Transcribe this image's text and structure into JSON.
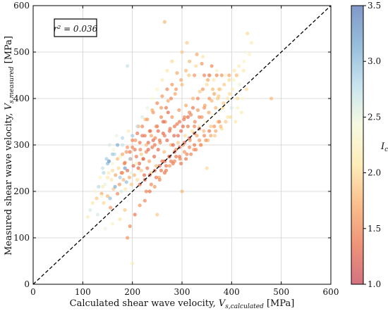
{
  "chart_data": {
    "type": "scatter",
    "xlabel_main": "Calculated shear wave velocity, ",
    "xlabel_sym": "V",
    "xlabel_sub": "s,calculated",
    "xlabel_unit": " [MPa]",
    "ylabel_main": "Measured shear wave velocity, ",
    "ylabel_sym": "V",
    "ylabel_sub": "s,measured",
    "ylabel_unit": " [MPa]",
    "xlim": [
      0,
      600
    ],
    "ylim": [
      0,
      600
    ],
    "xticks": [
      "0",
      "100",
      "200",
      "300",
      "400",
      "500",
      "600"
    ],
    "yticks": [
      "0",
      "100",
      "200",
      "300",
      "400",
      "500",
      "600"
    ],
    "grid": true,
    "annotation": "r² = 0.036",
    "reference_line": "1:1 (y = x), dashed black",
    "colorbar": {
      "label": "Ic",
      "range": [
        1.0,
        3.5
      ],
      "ticks": [
        "1.0",
        "1.5",
        "2.0",
        "2.5",
        "3.0",
        "3.5"
      ],
      "colormap": "RdYlBu",
      "colors": [
        "#c2364a",
        "#e8663f",
        "#f7a35c",
        "#fde49b",
        "#f3f8d5",
        "#b0d8e9",
        "#6aa2cc",
        "#4a6db3"
      ]
    },
    "points": [
      [
        110,
        145,
        2.2
      ],
      [
        115,
        160,
        2.6
      ],
      [
        120,
        175,
        2.1
      ],
      [
        125,
        200,
        2.4
      ],
      [
        128,
        185,
        1.9
      ],
      [
        132,
        210,
        2.8
      ],
      [
        135,
        230,
        2.3
      ],
      [
        138,
        195,
        1.7
      ],
      [
        140,
        250,
        2.7
      ],
      [
        142,
        175,
        2.0
      ],
      [
        145,
        215,
        2.5
      ],
      [
        148,
        270,
        2.9
      ],
      [
        150,
        190,
        1.8
      ],
      [
        152,
        240,
        2.2
      ],
      [
        154,
        300,
        2.6
      ],
      [
        156,
        165,
        1.6
      ],
      [
        158,
        225,
        2.1
      ],
      [
        160,
        260,
        2.4
      ],
      [
        162,
        205,
        1.9
      ],
      [
        164,
        280,
        2.8
      ],
      [
        166,
        235,
        1.7
      ],
      [
        168,
        320,
        2.5
      ],
      [
        170,
        195,
        1.5
      ],
      [
        172,
        250,
        2.0
      ],
      [
        174,
        215,
        1.6
      ],
      [
        176,
        275,
        2.3
      ],
      [
        178,
        240,
        1.4
      ],
      [
        180,
        300,
        2.7
      ],
      [
        182,
        225,
        1.8
      ],
      [
        184,
        260,
        1.5
      ],
      [
        186,
        205,
        2.1
      ],
      [
        188,
        285,
        1.6
      ],
      [
        190,
        245,
        1.3
      ],
      [
        192,
        330,
        2.2
      ],
      [
        194,
        230,
        1.7
      ],
      [
        196,
        270,
        1.4
      ],
      [
        198,
        215,
        1.9
      ],
      [
        200,
        295,
        1.5
      ],
      [
        202,
        255,
        1.3
      ],
      [
        204,
        235,
        1.8
      ],
      [
        206,
        310,
        1.6
      ],
      [
        208,
        275,
        1.4
      ],
      [
        210,
        225,
        2.0
      ],
      [
        212,
        340,
        1.7
      ],
      [
        214,
        260,
        1.3
      ],
      [
        216,
        290,
        1.5
      ],
      [
        218,
        245,
        1.9
      ],
      [
        220,
        320,
        1.4
      ],
      [
        222,
        270,
        1.6
      ],
      [
        224,
        235,
        1.3
      ],
      [
        226,
        355,
        1.8
      ],
      [
        228,
        285,
        1.5
      ],
      [
        230,
        250,
        1.4
      ],
      [
        232,
        305,
        1.3
      ],
      [
        234,
        265,
        1.7
      ],
      [
        236,
        330,
        1.5
      ],
      [
        238,
        240,
        1.9
      ],
      [
        240,
        295,
        1.4
      ],
      [
        242,
        370,
        1.6
      ],
      [
        244,
        275,
        1.3
      ],
      [
        246,
        315,
        1.5
      ],
      [
        248,
        255,
        1.8
      ],
      [
        250,
        340,
        1.4
      ],
      [
        252,
        290,
        1.3
      ],
      [
        254,
        230,
        1.7
      ],
      [
        256,
        305,
        1.5
      ],
      [
        258,
        380,
        1.6
      ],
      [
        260,
        265,
        1.4
      ],
      [
        262,
        325,
        1.3
      ],
      [
        264,
        285,
        1.8
      ],
      [
        266,
        350,
        1.5
      ],
      [
        268,
        245,
        1.4
      ],
      [
        270,
        310,
        1.3
      ],
      [
        272,
        395,
        1.7
      ],
      [
        274,
        275,
        1.5
      ],
      [
        276,
        335,
        1.4
      ],
      [
        278,
        300,
        1.8
      ],
      [
        280,
        360,
        1.6
      ],
      [
        282,
        260,
        1.4
      ],
      [
        284,
        320,
        1.3
      ],
      [
        286,
        410,
        1.7
      ],
      [
        288,
        290,
        1.5
      ],
      [
        290,
        345,
        1.4
      ],
      [
        292,
        305,
        1.9
      ],
      [
        294,
        375,
        1.6
      ],
      [
        296,
        270,
        1.5
      ],
      [
        298,
        330,
        1.3
      ],
      [
        300,
        430,
        1.8
      ],
      [
        302,
        300,
        1.6
      ],
      [
        304,
        355,
        1.4
      ],
      [
        306,
        320,
        2.0
      ],
      [
        308,
        385,
        1.7
      ],
      [
        310,
        280,
        1.5
      ],
      [
        312,
        340,
        1.4
      ],
      [
        314,
        450,
        1.9
      ],
      [
        316,
        310,
        1.6
      ],
      [
        318,
        365,
        1.5
      ],
      [
        320,
        330,
        2.1
      ],
      [
        322,
        400,
        1.8
      ],
      [
        324,
        290,
        1.6
      ],
      [
        326,
        350,
        1.5
      ],
      [
        328,
        470,
        2.0
      ],
      [
        330,
        320,
        1.7
      ],
      [
        332,
        375,
        1.6
      ],
      [
        334,
        340,
        2.2
      ],
      [
        336,
        415,
        1.9
      ],
      [
        338,
        300,
        1.7
      ],
      [
        340,
        360,
        1.6
      ],
      [
        342,
        490,
        2.1
      ],
      [
        344,
        330,
        1.8
      ],
      [
        346,
        385,
        1.7
      ],
      [
        348,
        350,
        2.3
      ],
      [
        350,
        430,
        2.0
      ],
      [
        352,
        310,
        1.8
      ],
      [
        354,
        370,
        1.7
      ],
      [
        356,
        450,
        2.2
      ],
      [
        358,
        340,
        1.9
      ],
      [
        360,
        395,
        1.8
      ],
      [
        362,
        365,
        2.4
      ],
      [
        364,
        440,
        2.1
      ],
      [
        366,
        320,
        1.9
      ],
      [
        368,
        380,
        1.8
      ],
      [
        370,
        460,
        2.3
      ],
      [
        372,
        350,
        2.0
      ],
      [
        374,
        405,
        1.9
      ],
      [
        376,
        375,
        2.5
      ],
      [
        378,
        420,
        2.2
      ],
      [
        380,
        335,
        2.0
      ],
      [
        384,
        390,
        1.9
      ],
      [
        388,
        450,
        2.4
      ],
      [
        392,
        360,
        2.1
      ],
      [
        396,
        410,
        2.0
      ],
      [
        400,
        380,
        2.6
      ],
      [
        404,
        440,
        2.3
      ],
      [
        408,
        350,
        2.1
      ],
      [
        412,
        400,
        2.0
      ],
      [
        416,
        430,
        2.5
      ],
      [
        420,
        370,
        2.2
      ],
      [
        424,
        460,
        2.1
      ],
      [
        428,
        500,
        2.4
      ],
      [
        432,
        540,
        2.0
      ],
      [
        436,
        495,
        2.3
      ],
      [
        440,
        520,
        2.2
      ],
      [
        480,
        400,
        1.8
      ],
      [
        190,
        100,
        1.6
      ],
      [
        195,
        125,
        1.5
      ],
      [
        205,
        150,
        1.4
      ],
      [
        215,
        170,
        1.6
      ],
      [
        225,
        180,
        1.5
      ],
      [
        235,
        200,
        1.4
      ],
      [
        245,
        210,
        1.6
      ],
      [
        255,
        225,
        1.5
      ],
      [
        265,
        240,
        1.4
      ],
      [
        275,
        255,
        1.6
      ],
      [
        285,
        265,
        1.5
      ],
      [
        295,
        275,
        1.4
      ],
      [
        305,
        285,
        1.6
      ],
      [
        315,
        295,
        1.5
      ],
      [
        325,
        300,
        1.4
      ],
      [
        335,
        310,
        1.6
      ],
      [
        345,
        320,
        1.5
      ],
      [
        355,
        330,
        1.4
      ],
      [
        365,
        340,
        1.6
      ],
      [
        375,
        350,
        1.5
      ],
      [
        200,
        45,
        2.2
      ],
      [
        250,
        150,
        1.9
      ],
      [
        300,
        200,
        1.8
      ],
      [
        350,
        250,
        2.0
      ],
      [
        160,
        130,
        2.3
      ],
      [
        175,
        140,
        2.1
      ],
      [
        185,
        160,
        1.9
      ],
      [
        145,
        120,
        2.5
      ],
      [
        130,
        150,
        2.6
      ],
      [
        155,
        185,
        3.0
      ],
      [
        165,
        210,
        3.1
      ],
      [
        175,
        230,
        2.9
      ],
      [
        185,
        250,
        3.2
      ],
      [
        195,
        270,
        2.8
      ],
      [
        150,
        260,
        3.0
      ],
      [
        160,
        280,
        2.9
      ],
      [
        170,
        300,
        3.1
      ],
      [
        180,
        315,
        2.8
      ],
      [
        200,
        320,
        2.9
      ],
      [
        210,
        340,
        2.7
      ],
      [
        220,
        360,
        2.6
      ],
      [
        230,
        380,
        2.5
      ],
      [
        240,
        400,
        2.4
      ],
      [
        250,
        420,
        2.3
      ],
      [
        260,
        440,
        2.2
      ],
      [
        270,
        460,
        2.1
      ],
      [
        280,
        480,
        2.0
      ],
      [
        190,
        470,
        2.7
      ],
      [
        265,
        565,
        1.8
      ],
      [
        310,
        520,
        1.9
      ],
      [
        330,
        495,
        1.7
      ],
      [
        340,
        475,
        1.6
      ],
      [
        360,
        470,
        1.5
      ],
      [
        370,
        450,
        1.5
      ],
      [
        380,
        450,
        1.6
      ],
      [
        395,
        450,
        1.7
      ],
      [
        410,
        450,
        1.8
      ],
      [
        325,
        450,
        1.6
      ],
      [
        345,
        450,
        1.5
      ],
      [
        355,
        450,
        1.4
      ],
      [
        300,
        500,
        1.9
      ],
      [
        315,
        480,
        1.8
      ],
      [
        290,
        455,
        1.7
      ],
      [
        280,
        430,
        1.6
      ],
      [
        270,
        420,
        1.5
      ],
      [
        260,
        405,
        1.6
      ],
      [
        250,
        390,
        1.5
      ],
      [
        240,
        375,
        1.7
      ],
      [
        230,
        355,
        1.6
      ],
      [
        220,
        340,
        1.5
      ],
      [
        210,
        325,
        1.4
      ],
      [
        200,
        310,
        1.5
      ],
      [
        190,
        295,
        1.6
      ],
      [
        180,
        280,
        1.7
      ],
      [
        170,
        270,
        1.8
      ],
      [
        160,
        245,
        2.0
      ],
      [
        150,
        230,
        2.1
      ],
      [
        140,
        210,
        2.2
      ],
      [
        138,
        190,
        2.4
      ],
      [
        142,
        240,
        2.8
      ],
      [
        153,
        265,
        3.3
      ],
      [
        162,
        290,
        2.4
      ],
      [
        178,
        200,
        2.6
      ],
      [
        188,
        220,
        3.0
      ],
      [
        198,
        240,
        2.5
      ],
      [
        208,
        260,
        2.2
      ],
      [
        218,
        280,
        1.9
      ],
      [
        228,
        300,
        1.8
      ],
      [
        238,
        320,
        1.7
      ],
      [
        248,
        340,
        1.6
      ],
      [
        258,
        360,
        1.5
      ],
      [
        268,
        380,
        1.4
      ],
      [
        278,
        400,
        1.5
      ],
      [
        288,
        420,
        1.6
      ],
      [
        298,
        440,
        1.7
      ],
      [
        308,
        460,
        1.8
      ],
      [
        215,
        215,
        1.3
      ],
      [
        225,
        225,
        1.3
      ],
      [
        235,
        235,
        1.3
      ],
      [
        245,
        245,
        1.3
      ],
      [
        255,
        255,
        1.3
      ],
      [
        265,
        265,
        1.3
      ],
      [
        275,
        275,
        1.3
      ],
      [
        285,
        285,
        1.3
      ],
      [
        295,
        295,
        1.3
      ],
      [
        305,
        305,
        1.3
      ],
      [
        315,
        315,
        1.3
      ],
      [
        325,
        325,
        1.3
      ],
      [
        335,
        335,
        1.3
      ],
      [
        212,
        250,
        1.3
      ],
      [
        222,
        270,
        1.3
      ],
      [
        232,
        290,
        1.3
      ],
      [
        242,
        310,
        1.3
      ],
      [
        252,
        330,
        1.3
      ],
      [
        262,
        350,
        1.3
      ],
      [
        272,
        370,
        1.3
      ],
      [
        282,
        300,
        1.3
      ],
      [
        292,
        320,
        1.3
      ],
      [
        302,
        340,
        1.3
      ],
      [
        312,
        360,
        1.3
      ],
      [
        322,
        380,
        1.4
      ],
      [
        332,
        400,
        1.5
      ],
      [
        342,
        420,
        1.6
      ],
      [
        352,
        440,
        1.7
      ],
      [
        362,
        420,
        1.8
      ],
      [
        372,
        400,
        1.9
      ],
      [
        382,
        380,
        2.0
      ],
      [
        392,
        400,
        2.1
      ],
      [
        402,
        420,
        2.2
      ],
      [
        412,
        380,
        2.3
      ],
      [
        422,
        400,
        2.4
      ],
      [
        430,
        420,
        2.0
      ],
      [
        180,
        240,
        1.6
      ],
      [
        185,
        262,
        1.5
      ],
      [
        195,
        285,
        1.4
      ],
      [
        205,
        290,
        1.4
      ],
      [
        215,
        305,
        1.4
      ],
      [
        225,
        320,
        1.4
      ],
      [
        235,
        330,
        1.4
      ],
      [
        245,
        300,
        1.4
      ],
      [
        255,
        310,
        1.4
      ],
      [
        265,
        320,
        1.4
      ],
      [
        275,
        330,
        1.4
      ],
      [
        285,
        340,
        1.4
      ],
      [
        295,
        350,
        1.4
      ],
      [
        305,
        360,
        1.5
      ],
      [
        315,
        370,
        1.5
      ],
      [
        325,
        340,
        1.5
      ],
      [
        335,
        360,
        1.5
      ],
      [
        345,
        380,
        1.6
      ],
      [
        355,
        400,
        1.6
      ],
      [
        365,
        410,
        1.7
      ],
      [
        375,
        420,
        1.8
      ],
      [
        385,
        430,
        1.9
      ],
      [
        395,
        440,
        2.0
      ],
      [
        405,
        460,
        2.1
      ],
      [
        415,
        470,
        2.2
      ],
      [
        425,
        480,
        2.3
      ],
      [
        228,
        200,
        1.5
      ],
      [
        238,
        215,
        1.5
      ],
      [
        248,
        230,
        1.4
      ],
      [
        258,
        245,
        1.4
      ],
      [
        268,
        255,
        1.4
      ],
      [
        278,
        265,
        1.4
      ],
      [
        288,
        275,
        1.4
      ],
      [
        298,
        260,
        1.4
      ],
      [
        308,
        270,
        1.4
      ],
      [
        318,
        280,
        1.5
      ],
      [
        328,
        290,
        1.5
      ],
      [
        338,
        300,
        1.6
      ],
      [
        348,
        310,
        1.6
      ],
      [
        358,
        320,
        1.7
      ],
      [
        368,
        330,
        1.7
      ],
      [
        378,
        340,
        1.8
      ],
      [
        388,
        350,
        1.9
      ],
      [
        398,
        360,
        2.0
      ]
    ]
  }
}
